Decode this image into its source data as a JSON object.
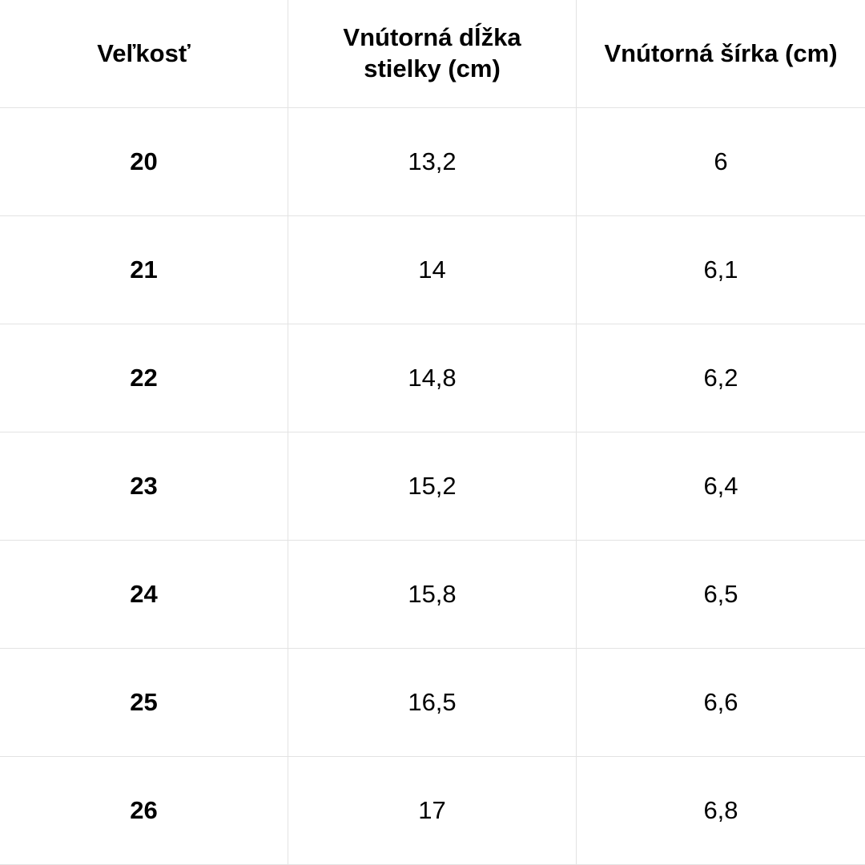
{
  "table": {
    "header": [
      "Veľkosť",
      "Vnútorná dĺžka stielky (cm)",
      "Vnútorná šírka (cm)"
    ],
    "rows": [
      [
        "20",
        "13,2",
        "6"
      ],
      [
        "21",
        "14",
        "6,1"
      ],
      [
        "22",
        "14,8",
        "6,2"
      ],
      [
        "23",
        "15,2",
        "6,4"
      ],
      [
        "24",
        "15,8",
        "6,5"
      ],
      [
        "25",
        "16,5",
        "6,6"
      ],
      [
        "26",
        "17",
        "6,8"
      ]
    ]
  }
}
